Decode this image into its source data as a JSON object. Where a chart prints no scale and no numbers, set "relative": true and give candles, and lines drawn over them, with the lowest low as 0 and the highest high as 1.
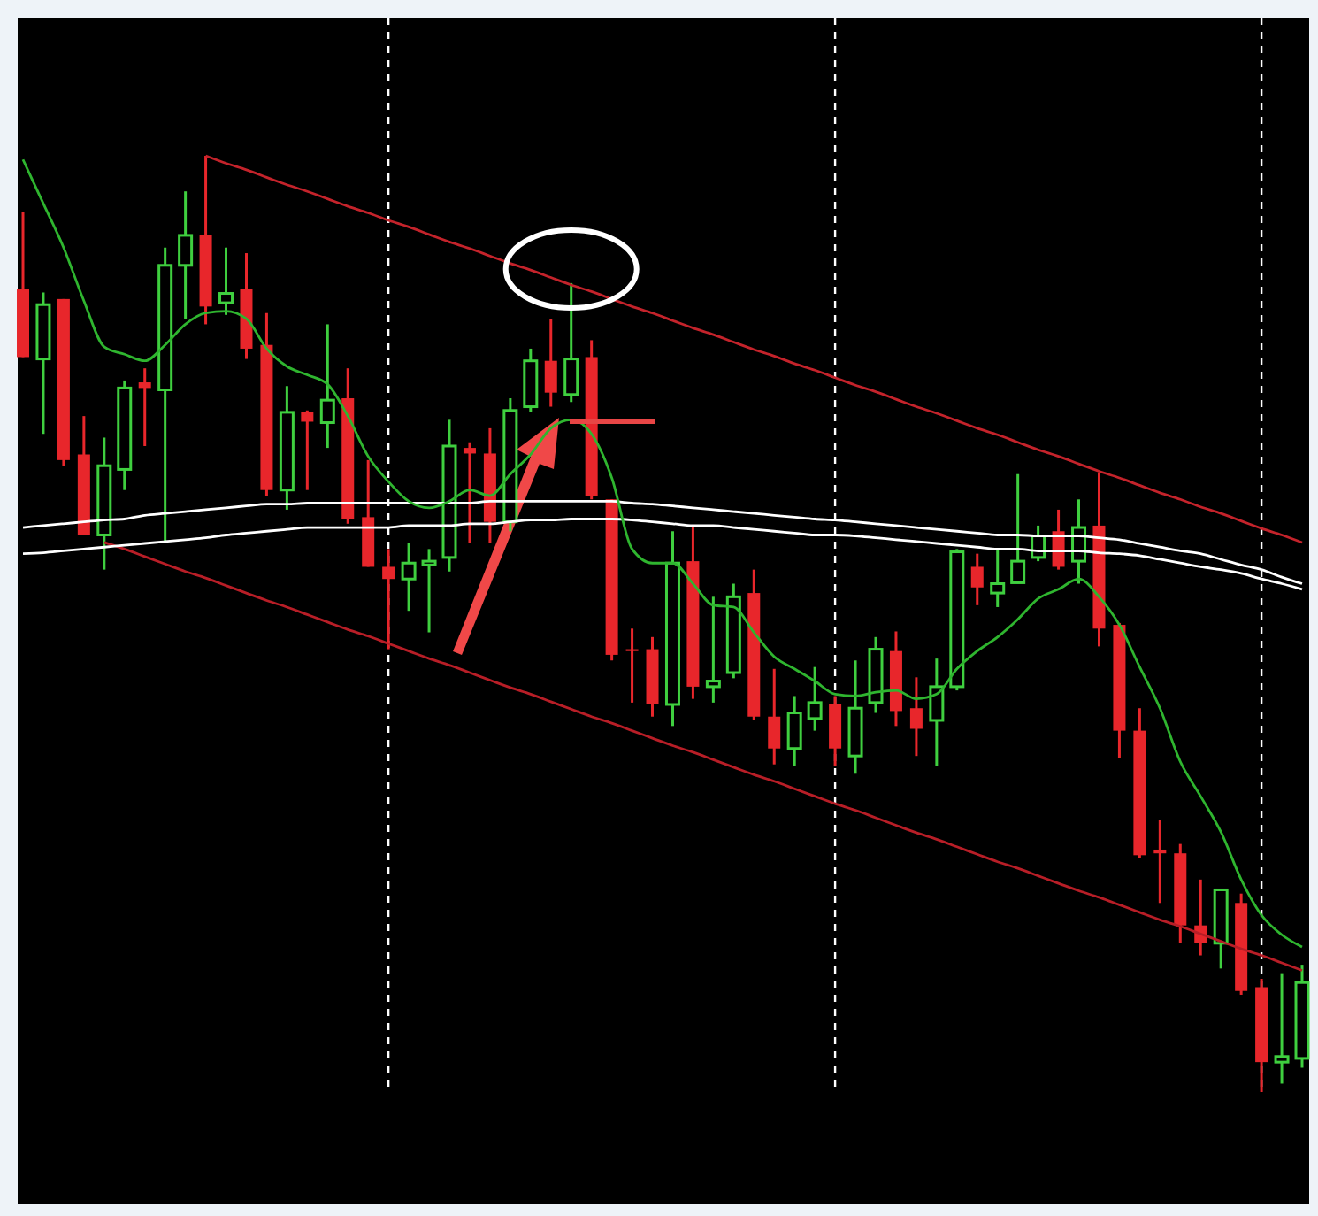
{
  "chart_data": {
    "type": "candlestick",
    "relative": true,
    "grid": "x",
    "categories": [
      null,
      null,
      null,
      null,
      null,
      null,
      null,
      null,
      null,
      null,
      null,
      null,
      null,
      null,
      null,
      null,
      null,
      null,
      null,
      null,
      null,
      null,
      null,
      null,
      null,
      null,
      null,
      null,
      null,
      null,
      null,
      null,
      null,
      null,
      null,
      null,
      null,
      null,
      null,
      null,
      null,
      null,
      null,
      null,
      null,
      null,
      null,
      null,
      null,
      null,
      null,
      null,
      null,
      null,
      null,
      null,
      null,
      null,
      null,
      null,
      null,
      null,
      null,
      null
    ],
    "ohlc": [
      [
        0.858,
        0.94,
        0.785,
        0.785
      ],
      [
        0.783,
        0.854,
        0.703,
        0.841
      ],
      [
        0.847,
        0.847,
        0.669,
        0.675
      ],
      [
        0.681,
        0.722,
        0.595,
        0.595
      ],
      [
        0.595,
        0.699,
        0.558,
        0.669
      ],
      [
        0.665,
        0.76,
        0.643,
        0.752
      ],
      [
        0.758,
        0.773,
        0.69,
        0.752
      ],
      [
        0.75,
        0.902,
        0.586,
        0.883
      ],
      [
        0.883,
        0.962,
        0.826,
        0.915
      ],
      [
        0.915,
        1,
        0.82,
        0.839
      ],
      [
        0.843,
        0.902,
        0.83,
        0.853
      ],
      [
        0.858,
        0.896,
        0.783,
        0.794
      ],
      [
        0.798,
        0.832,
        0.637,
        0.643
      ],
      [
        0.643,
        0.754,
        0.622,
        0.726
      ],
      [
        0.726,
        0.728,
        0.643,
        0.716
      ],
      [
        0.715,
        0.82,
        0.688,
        0.739
      ],
      [
        0.741,
        0.773,
        0.607,
        0.612
      ],
      [
        0.614,
        0.675,
        0.561,
        0.561
      ],
      [
        0.561,
        0.58,
        0.473,
        0.548
      ],
      [
        0.548,
        0.586,
        0.514,
        0.565
      ],
      [
        0.563,
        0.58,
        0.491,
        0.567
      ],
      [
        0.571,
        0.718,
        0.556,
        0.69
      ],
      [
        0.688,
        0.694,
        0.586,
        0.682
      ],
      [
        0.682,
        0.709,
        0.586,
        0.609
      ],
      [
        0.609,
        0.741,
        0.599,
        0.728
      ],
      [
        0.732,
        0.794,
        0.726,
        0.781
      ],
      [
        0.781,
        0.826,
        0.732,
        0.747
      ],
      [
        0.745,
        0.864,
        0.737,
        0.783
      ],
      [
        0.785,
        0.803,
        0.633,
        0.637
      ],
      [
        0.633,
        0.633,
        0.461,
        0.467
      ],
      [
        0.473,
        0.495,
        0.416,
        0.471
      ],
      [
        0.473,
        0.486,
        0.401,
        0.414
      ],
      [
        0.414,
        0.599,
        0.391,
        0.565
      ],
      [
        0.567,
        0.603,
        0.42,
        0.433
      ],
      [
        0.433,
        0.529,
        0.416,
        0.439
      ],
      [
        0.448,
        0.543,
        0.442,
        0.529
      ],
      [
        0.533,
        0.558,
        0.397,
        0.401
      ],
      [
        0.401,
        0.452,
        0.35,
        0.367
      ],
      [
        0.367,
        0.423,
        0.348,
        0.405
      ],
      [
        0.399,
        0.454,
        0.386,
        0.416
      ],
      [
        0.414,
        0.423,
        0.348,
        0.367
      ],
      [
        0.359,
        0.461,
        0.34,
        0.41
      ],
      [
        0.416,
        0.486,
        0.405,
        0.473
      ],
      [
        0.471,
        0.492,
        0.391,
        0.407
      ],
      [
        0.41,
        0.443,
        0.359,
        0.388
      ],
      [
        0.397,
        0.463,
        0.348,
        0.433
      ],
      [
        0.433,
        0.58,
        0.429,
        0.577
      ],
      [
        0.561,
        0.575,
        0.52,
        0.539
      ],
      [
        0.533,
        0.58,
        0.518,
        0.543
      ],
      [
        0.544,
        0.66,
        0.544,
        0.567
      ],
      [
        0.571,
        0.605,
        0.567,
        0.594
      ],
      [
        0.599,
        0.622,
        0.558,
        0.561
      ],
      [
        0.567,
        0.633,
        0.543,
        0.603
      ],
      [
        0.605,
        0.662,
        0.476,
        0.495
      ],
      [
        0.499,
        0.501,
        0.357,
        0.386
      ],
      [
        0.386,
        0.41,
        0.25,
        0.253
      ],
      [
        0.259,
        0.291,
        0.202,
        0.255
      ],
      [
        0.255,
        0.265,
        0.159,
        0.178
      ],
      [
        0.178,
        0.227,
        0.146,
        0.159
      ],
      [
        0.159,
        0.217,
        0.132,
        0.216
      ],
      [
        0.202,
        0.212,
        0.104,
        0.108
      ],
      [
        0.112,
        0.121,
        0,
        0.032
      ],
      [
        0.032,
        0.127,
        0.009,
        0.038
      ],
      [
        0.036,
        0.136,
        0.026,
        0.117
      ]
    ],
    "colors": [
      "#e8262b",
      "#3fcf3f",
      "#e8262b",
      "#e8262b",
      "#3fcf3f",
      "#3fcf3f",
      "#e8262b",
      "#3fcf3f",
      "#3fcf3f",
      "#e8262b",
      "#3fcf3f",
      "#e8262b",
      "#e8262b",
      "#3fcf3f",
      "#e8262b",
      "#3fcf3f",
      "#e8262b",
      "#e8262b",
      "#e8262b",
      "#3fcf3f",
      "#3fcf3f",
      "#3fcf3f",
      "#e8262b",
      "#e8262b",
      "#3fcf3f",
      "#3fcf3f",
      "#e8262b",
      "#3fcf3f",
      "#e8262b",
      "#e8262b",
      "#e8262b",
      "#e8262b",
      "#3fcf3f",
      "#e8262b",
      "#3fcf3f",
      "#3fcf3f",
      "#e8262b",
      "#e8262b",
      "#3fcf3f",
      "#3fcf3f",
      "#e8262b",
      "#3fcf3f",
      "#3fcf3f",
      "#e8262b",
      "#e8262b",
      "#3fcf3f",
      "#3fcf3f",
      "#e8262b",
      "#3fcf3f",
      "#3fcf3f",
      "#3fcf3f",
      "#e8262b",
      "#3fcf3f",
      "#e8262b",
      "#e8262b",
      "#e8262b",
      "#e8262b",
      "#e8262b",
      "#e8262b",
      "#3fcf3f",
      "#e8262b",
      "#e8262b",
      "#3fcf3f",
      "#3fcf3f"
    ],
    "series": [
      {
        "type": "line",
        "color": "#c4232b",
        "values": [
          null,
          null,
          null,
          null,
          null,
          null,
          null,
          null,
          null,
          1.0,
          0.992,
          0.985,
          0.977,
          0.969,
          0.962,
          0.954,
          0.946,
          0.939,
          0.931,
          0.924,
          0.916,
          0.908,
          0.901,
          0.893,
          0.885,
          0.878,
          0.87,
          0.862,
          0.855,
          0.847,
          0.839,
          0.832,
          0.824,
          0.816,
          0.809,
          0.801,
          0.793,
          0.786,
          0.778,
          0.771,
          0.763,
          0.755,
          0.748,
          0.74,
          0.732,
          0.725,
          0.717,
          0.709,
          0.702,
          0.694,
          0.686,
          0.679,
          0.671,
          0.663,
          0.656,
          0.648,
          0.64,
          0.633,
          0.625,
          0.618,
          0.61,
          0.602,
          0.595,
          0.587
        ]
      },
      {
        "type": "line",
        "color": "#b81e27",
        "values": [
          null,
          null,
          null,
          null,
          0.587,
          0.58,
          0.572,
          0.564,
          0.556,
          0.549,
          0.541,
          0.533,
          0.525,
          0.518,
          0.51,
          0.502,
          0.494,
          0.487,
          0.479,
          0.471,
          0.463,
          0.456,
          0.448,
          0.44,
          0.432,
          0.425,
          0.417,
          0.409,
          0.401,
          0.394,
          0.386,
          0.378,
          0.37,
          0.363,
          0.355,
          0.347,
          0.339,
          0.332,
          0.324,
          0.316,
          0.308,
          0.301,
          0.293,
          0.285,
          0.277,
          0.27,
          0.262,
          0.254,
          0.246,
          0.239,
          0.231,
          0.223,
          0.215,
          0.208,
          0.2,
          0.192,
          0.184,
          0.177,
          0.169,
          0.161,
          0.153,
          0.146,
          0.138,
          0.13
        ]
      },
      {
        "type": "line",
        "color": "#ffffff",
        "values": [
          0.603,
          0.605,
          0.607,
          0.609,
          0.611,
          0.612,
          0.616,
          0.618,
          0.62,
          0.622,
          0.624,
          0.626,
          0.628,
          0.628,
          0.629,
          0.629,
          0.629,
          0.629,
          0.629,
          0.629,
          0.629,
          0.629,
          0.629,
          0.631,
          0.631,
          0.631,
          0.631,
          0.631,
          0.631,
          0.631,
          0.629,
          0.628,
          0.626,
          0.624,
          0.622,
          0.62,
          0.618,
          0.616,
          0.614,
          0.612,
          0.611,
          0.609,
          0.607,
          0.605,
          0.603,
          0.601,
          0.599,
          0.597,
          0.595,
          0.595,
          0.594,
          0.594,
          0.594,
          0.592,
          0.59,
          0.586,
          0.582,
          0.578,
          0.575,
          0.569,
          0.563,
          0.558,
          0.55,
          0.543
        ]
      },
      {
        "type": "line",
        "color": "#ffffff",
        "values": [
          0.575,
          0.576,
          0.578,
          0.58,
          0.582,
          0.584,
          0.586,
          0.588,
          0.59,
          0.592,
          0.595,
          0.597,
          0.599,
          0.601,
          0.603,
          0.603,
          0.603,
          0.603,
          0.603,
          0.605,
          0.605,
          0.605,
          0.607,
          0.607,
          0.609,
          0.611,
          0.611,
          0.612,
          0.612,
          0.612,
          0.611,
          0.609,
          0.607,
          0.605,
          0.605,
          0.603,
          0.601,
          0.599,
          0.597,
          0.595,
          0.595,
          0.594,
          0.592,
          0.59,
          0.588,
          0.586,
          0.584,
          0.582,
          0.58,
          0.58,
          0.578,
          0.578,
          0.578,
          0.576,
          0.575,
          0.573,
          0.569,
          0.565,
          0.561,
          0.558,
          0.554,
          0.548,
          0.543,
          0.537
        ]
      },
      {
        "type": "line",
        "color": "#2fb52f",
        "values": [
          0.996,
          0.949,
          0.902,
          0.845,
          0.796,
          0.788,
          0.781,
          0.798,
          0.82,
          0.832,
          0.834,
          0.826,
          0.794,
          0.775,
          0.766,
          0.756,
          0.722,
          0.679,
          0.652,
          0.631,
          0.624,
          0.631,
          0.643,
          0.637,
          0.66,
          0.681,
          0.709,
          0.718,
          0.703,
          0.656,
          0.58,
          0.565,
          0.565,
          0.543,
          0.52,
          0.518,
          0.491,
          0.465,
          0.452,
          0.439,
          0.425,
          0.423,
          0.427,
          0.429,
          0.42,
          0.425,
          0.452,
          0.471,
          0.486,
          0.505,
          0.527,
          0.537,
          0.548,
          0.529,
          0.499,
          0.454,
          0.41,
          0.353,
          0.316,
          0.278,
          0.227,
          0.189,
          0.168,
          0.155
        ]
      }
    ]
  }
}
